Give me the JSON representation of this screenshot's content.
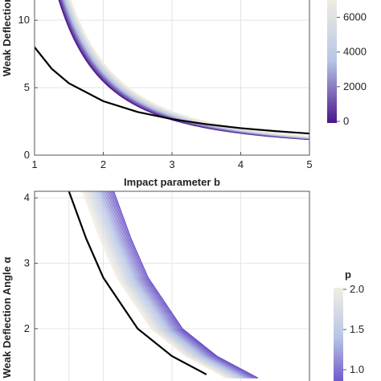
{
  "chart_data": [
    {
      "type": "line",
      "xlabel": "Impact parameter b",
      "ylabel": "Weak Deflection",
      "xlim": [
        1,
        5
      ],
      "ylim": [
        0,
        11.5
      ],
      "x_ticks": [
        "1",
        "2",
        "3",
        "4",
        "5"
      ],
      "y_ticks": [
        "0",
        "5",
        "10"
      ],
      "grid": true,
      "reference_curve": {
        "color": "#000000",
        "x": [
          1,
          1.25,
          1.5,
          2,
          2.5,
          3,
          3.5,
          4,
          4.5,
          5
        ],
        "y": [
          8.0,
          6.4,
          5.33,
          4.0,
          3.2,
          2.67,
          2.29,
          2.0,
          1.78,
          1.6
        ]
      },
      "family": {
        "parameter_min": 0,
        "parameter_max": 7000,
        "curve_count": 22,
        "coefficient_at_min": 20.5,
        "coefficient_at_max": 26.0,
        "color_at_min": "#4a148c",
        "color_mid": "#b7c6e6",
        "color_at_max": "#f2ede1"
      },
      "colorbar": {
        "label": "",
        "ticks": [
          "0",
          "2000",
          "4000",
          "6000"
        ],
        "tick_values": [
          0,
          2000,
          4000,
          6000
        ],
        "range": [
          0,
          7000
        ]
      }
    },
    {
      "type": "line",
      "xlabel": "",
      "ylabel": "Weak Deflection Angle α",
      "xlim": [
        1,
        5
      ],
      "ylim": [
        1.2,
        4.1
      ],
      "y_ticks": [
        "2",
        "3",
        "4"
      ],
      "grid": true,
      "reference_curve": {
        "color": "#000000",
        "x": [
          1.5,
          1.75,
          2.0,
          2.5,
          3.0,
          3.5
        ],
        "y": [
          4.1,
          3.38,
          2.78,
          2.0,
          1.58,
          1.3
        ]
      },
      "family": {
        "parameter_min": 0.8,
        "parameter_max": 2.0,
        "curve_count": 20,
        "shift_at_min": 0.65,
        "shift_at_max": 0.2,
        "color_at_min": "#6a4fc8",
        "color_mid": "#b7c6e6",
        "color_at_max": "#f2ede1"
      },
      "colorbar": {
        "label": "p",
        "ticks": [
          "1.0",
          "1.5",
          "2.0"
        ],
        "tick_values": [
          1.0,
          1.5,
          2.0
        ],
        "range": [
          0.8,
          2.0
        ]
      }
    }
  ]
}
